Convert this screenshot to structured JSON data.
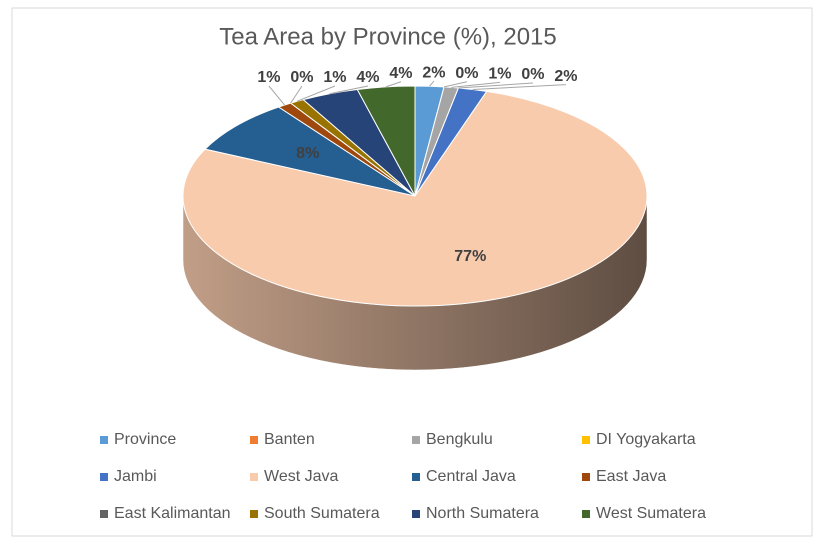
{
  "chart_data": {
    "type": "pie3d",
    "title": "Tea Area by Province (%), 2015",
    "categories": [
      "Province",
      "Banten",
      "Bengkulu",
      "DI Yogyakarta",
      "Jambi",
      "West Java",
      "Central Java",
      "East Java",
      "East Kalimantan",
      "South Sumatera",
      "North Sumatera",
      "West Sumatera"
    ],
    "values": [
      2,
      0,
      1,
      0,
      2,
      77,
      8,
      1,
      0,
      1,
      4,
      4
    ],
    "value_labels": [
      "2%",
      "0%",
      "1%",
      "0%",
      "2%",
      "77%",
      "8%",
      "1%",
      "0%",
      "1%",
      "4%",
      "4%"
    ],
    "colors": [
      "#5b9bd5",
      "#ed7d31",
      "#a5a5a5",
      "#ffc000",
      "#4472c4",
      "#f8cbad",
      "#255e91",
      "#9e480e",
      "#636363",
      "#997300",
      "#264478",
      "#43682b"
    ],
    "legend": "bottom"
  }
}
